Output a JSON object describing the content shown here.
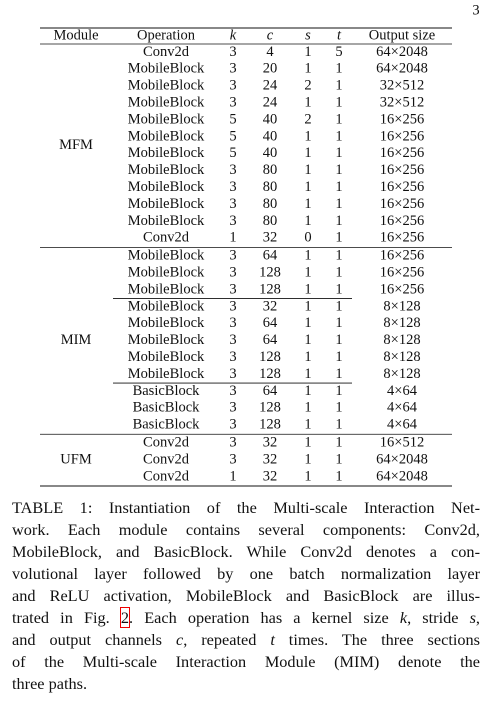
{
  "page_number": "3",
  "table": {
    "header": [
      "Module",
      "Operation",
      "k",
      "c",
      "s",
      "t",
      "Output size"
    ],
    "modules": [
      {
        "name": "MFM",
        "parts": [
          [
            [
              "Conv2d",
              3,
              4,
              1,
              5,
              "64×2048"
            ],
            [
              "MobileBlock",
              3,
              20,
              1,
              1,
              "64×2048"
            ],
            [
              "MobileBlock",
              3,
              24,
              2,
              1,
              "32×512"
            ],
            [
              "MobileBlock",
              3,
              24,
              1,
              1,
              "32×512"
            ],
            [
              "MobileBlock",
              5,
              40,
              2,
              1,
              "16×256"
            ],
            [
              "MobileBlock",
              5,
              40,
              1,
              1,
              "16×256"
            ],
            [
              "MobileBlock",
              5,
              40,
              1,
              1,
              "16×256"
            ],
            [
              "MobileBlock",
              3,
              80,
              1,
              1,
              "16×256"
            ],
            [
              "MobileBlock",
              3,
              80,
              1,
              1,
              "16×256"
            ],
            [
              "MobileBlock",
              3,
              80,
              1,
              1,
              "16×256"
            ],
            [
              "MobileBlock",
              3,
              80,
              1,
              1,
              "16×256"
            ],
            [
              "Conv2d",
              1,
              32,
              0,
              1,
              "16×256"
            ]
          ]
        ]
      },
      {
        "name": "MIM",
        "parts": [
          [
            [
              "MobileBlock",
              3,
              64,
              1,
              1,
              "16×256"
            ],
            [
              "MobileBlock",
              3,
              128,
              1,
              1,
              "16×256"
            ],
            [
              "MobileBlock",
              3,
              128,
              1,
              1,
              "16×256"
            ]
          ],
          [
            [
              "MobileBlock",
              3,
              32,
              1,
              1,
              "8×128"
            ],
            [
              "MobileBlock",
              3,
              64,
              1,
              1,
              "8×128"
            ],
            [
              "MobileBlock",
              3,
              64,
              1,
              1,
              "8×128"
            ],
            [
              "MobileBlock",
              3,
              128,
              1,
              1,
              "8×128"
            ],
            [
              "MobileBlock",
              3,
              128,
              1,
              1,
              "8×128"
            ]
          ],
          [
            [
              "BasicBlock",
              3,
              64,
              1,
              1,
              "4×64"
            ],
            [
              "BasicBlock",
              3,
              128,
              1,
              1,
              "4×64"
            ],
            [
              "BasicBlock",
              3,
              128,
              1,
              1,
              "4×64"
            ]
          ]
        ]
      },
      {
        "name": "UFM",
        "parts": [
          [
            [
              "Conv2d",
              3,
              32,
              1,
              1,
              "16×512"
            ],
            [
              "Conv2d",
              3,
              32,
              1,
              1,
              "64×2048"
            ],
            [
              "Conv2d",
              1,
              32,
              1,
              1,
              "64×2048"
            ]
          ]
        ]
      }
    ]
  },
  "caption": {
    "lines": [
      [
        "TABLE 1: Instantiation of the Multi-scale Interaction Net-"
      ],
      [
        "work. Each module contains several components: Conv2d,"
      ],
      [
        "MobileBlock, and BasicBlock. While Conv2d denotes a con-"
      ],
      [
        "volutional layer followed by one batch normalization layer"
      ],
      [
        "and ReLU activation, MobileBlock and BasicBlock are illus-"
      ],
      [
        "trated in Fig. ",
        {
          "text": "2",
          "boxed": true
        },
        ". Each operation has a kernel size ",
        {
          "text": "k",
          "italic": true
        },
        ", stride ",
        {
          "text": "s",
          "italic": true
        },
        ","
      ],
      [
        "and output channels ",
        {
          "text": "c",
          "italic": true
        },
        ", repeated ",
        {
          "text": "t",
          "italic": true
        },
        " times. The three sections"
      ],
      [
        "of the Multi-scale Interaction Module (MIM) denote the"
      ],
      [
        "three paths."
      ]
    ]
  }
}
